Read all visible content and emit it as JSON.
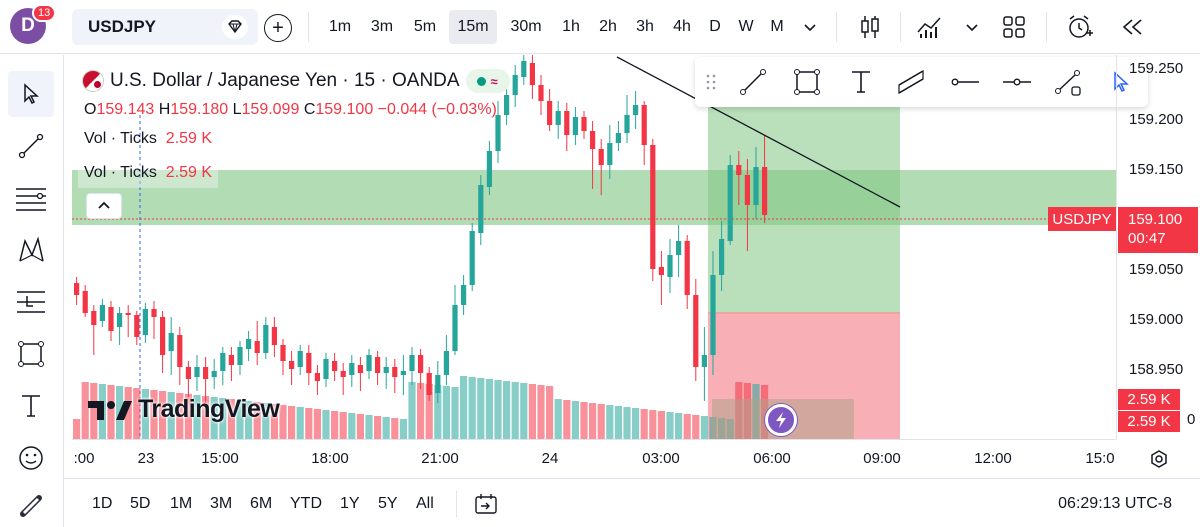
{
  "header": {
    "avatar_letter": "D",
    "notification_count": "13",
    "symbol": "USDJPY",
    "timeframes": [
      {
        "label": "1m",
        "x": 0
      },
      {
        "label": "3m"
      },
      {
        "label": "5m"
      },
      {
        "label": "15m",
        "active": true
      },
      {
        "label": "30m"
      },
      {
        "label": "1h"
      },
      {
        "label": "2h"
      },
      {
        "label": "3h"
      },
      {
        "label": "4h"
      },
      {
        "label": "D"
      },
      {
        "label": "W"
      },
      {
        "label": "M"
      }
    ],
    "icons": [
      "diamond-alert-icon",
      "plus-icon",
      "chevron-down-icon",
      "candles-icon",
      "indicators-icon",
      "layout-icon",
      "alert-clock-icon",
      "replay-icon"
    ]
  },
  "legend": {
    "title": "U.S. Dollar / Japanese Yen · 15 · OANDA",
    "open_label": "O",
    "open": "159.143",
    "high_label": "H",
    "high": "159.180",
    "low_label": "L",
    "low": "159.099",
    "close_label": "C",
    "close": "159.100",
    "change": "−0.044 (−0.03%)",
    "vol_label": "Vol · Ticks",
    "vol_value": "2.59 K"
  },
  "price_axis": {
    "labels": [
      "159.250",
      "159.200",
      "159.150",
      "159.050",
      "159.000",
      "158.950"
    ],
    "current_price": "159.100",
    "countdown": "00:47",
    "symbol_tag": "USDJPY",
    "vol_tags": [
      "2.59 K",
      "2.59 K"
    ],
    "partial_label": "0"
  },
  "time_axis": {
    "labels": [
      ":00",
      "23",
      "15:00",
      "18:00",
      "21:00",
      "24",
      "03:00",
      "06:00",
      "09:00",
      "12:00",
      "15:0"
    ]
  },
  "ranges": [
    "1D",
    "5D",
    "1M",
    "3M",
    "6M",
    "YTD",
    "1Y",
    "5Y",
    "All"
  ],
  "clock": "06:29:13 UTC-8",
  "branding": "TradingView",
  "colors": {
    "up": "#26a69a",
    "down": "#f23645",
    "accent": "#2962ff",
    "profit_zone": "#81c784",
    "loss_zone": "#f7a1a8"
  }
}
